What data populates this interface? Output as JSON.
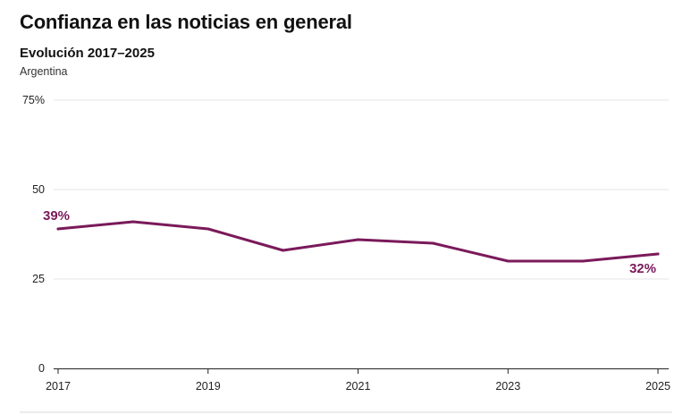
{
  "header": {
    "title": "Confianza en las noticias en general",
    "subtitle": "Evolución 2017–2025",
    "region": "Argentina"
  },
  "colors": {
    "line": "#7a1a5a",
    "grid": "#e6e6e6",
    "axis": "#222222",
    "bottom_rule": "#d9d9d9"
  },
  "chart_data": {
    "type": "line",
    "title": "Confianza en las noticias en general",
    "subtitle": "Evolución 2017–2025",
    "xlabel": "",
    "ylabel": "",
    "x": [
      2017,
      2018,
      2019,
      2020,
      2021,
      2022,
      2023,
      2024,
      2025
    ],
    "x_ticks": [
      "2017",
      "2019",
      "2021",
      "2023",
      "2025"
    ],
    "y_ticks": [
      "0",
      "25",
      "50",
      "75%"
    ],
    "ylim": [
      0,
      75
    ],
    "grid": true,
    "series": [
      {
        "values": [
          39,
          41,
          39,
          33,
          36,
          35,
          30,
          30,
          32
        ]
      }
    ],
    "annotations": [
      {
        "x": 2017,
        "text": "39%"
      },
      {
        "x": 2025,
        "text": "32%"
      }
    ]
  }
}
